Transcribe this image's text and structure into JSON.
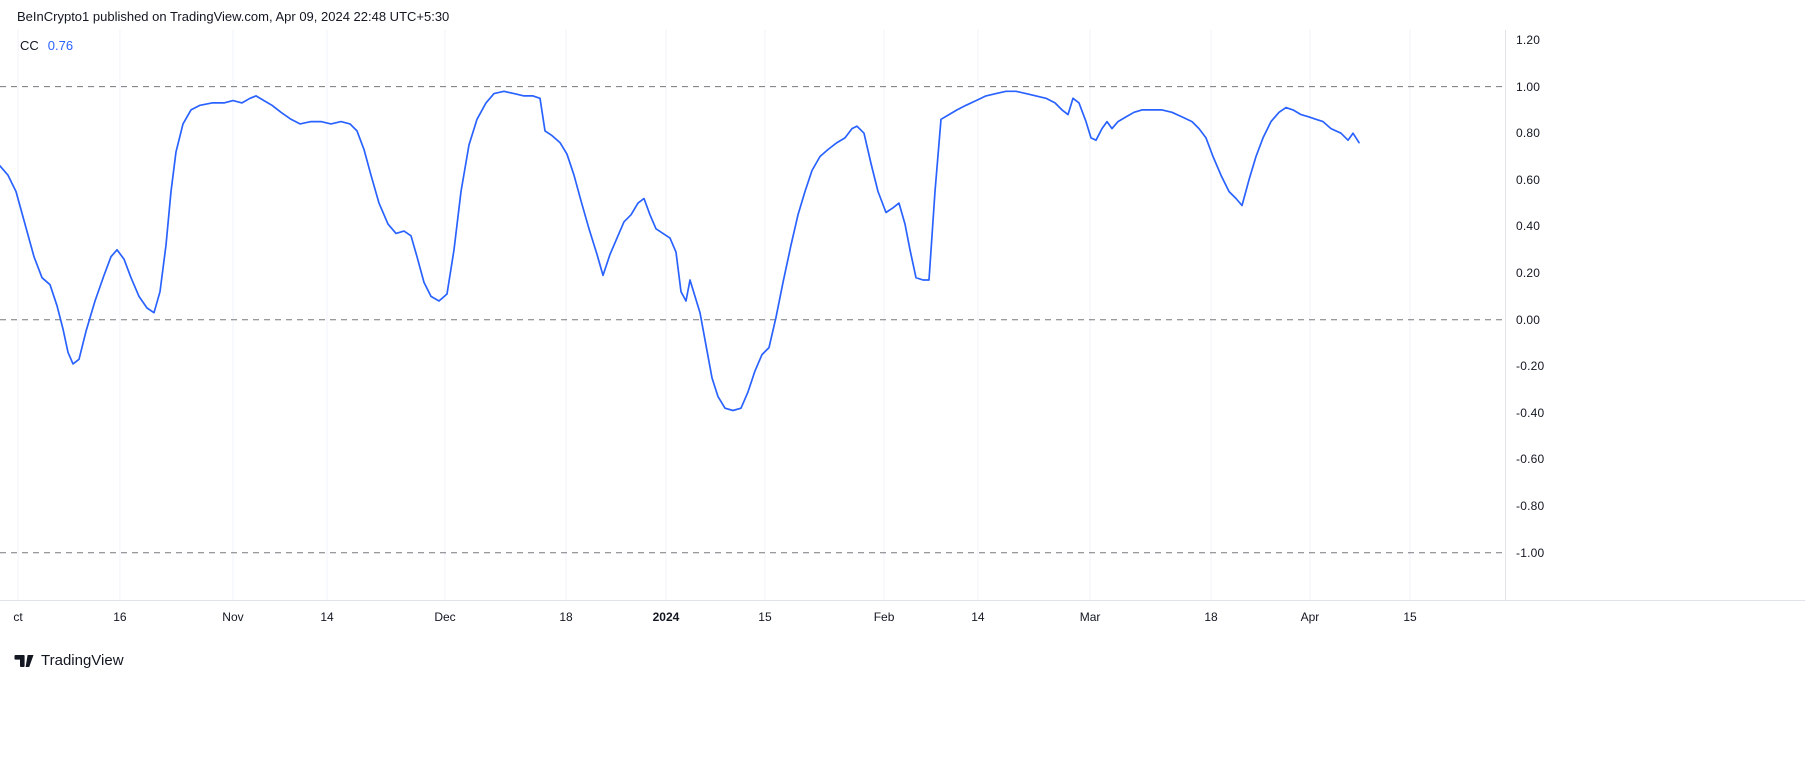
{
  "header": {
    "attribution": "BeInCrypto1 published on TradingView.com, Apr 09, 2024 22:48 UTC+5:30"
  },
  "legend": {
    "indicator": "CC",
    "value": "0.76"
  },
  "footer": {
    "logo_text": "TradingView"
  },
  "colors": {
    "background": "#FFFFFF",
    "line": "#2962FF",
    "value_text": "#2962FF",
    "dashed_grid": "#76787F",
    "vertical_grid": "#F0F3FA",
    "axis_text": "#131722",
    "pane_border": "#E0E3EB"
  },
  "chart_data": {
    "type": "line",
    "title": "CC (Correlation Coefficient)",
    "series_name": "CC",
    "current_value": 0.76,
    "x_range": [
      "Oct 2023",
      "Apr 2024"
    ],
    "y_domain": [
      1.243,
      -1.203
    ],
    "grid": "dashed horizontal at 1.00 / 0.00 / -1.00, faint vertical at time ticks",
    "legend_position": "top-left",
    "dashed_levels": [
      1.0,
      0.0,
      -1.0
    ],
    "y_ticks": [
      {
        "label": "1.20",
        "value": 1.2
      },
      {
        "label": "1.00",
        "value": 1.0
      },
      {
        "label": "0.80",
        "value": 0.8
      },
      {
        "label": "0.60",
        "value": 0.6
      },
      {
        "label": "0.40",
        "value": 0.4
      },
      {
        "label": "0.20",
        "value": 0.2
      },
      {
        "label": "0.00",
        "value": 0.0
      },
      {
        "label": "-0.20",
        "value": -0.2
      },
      {
        "label": "-0.40",
        "value": -0.4
      },
      {
        "label": "-0.60",
        "value": -0.6
      },
      {
        "label": "-0.80",
        "value": -0.8
      },
      {
        "label": "-1.00",
        "value": -1.0
      }
    ],
    "x_ticks": [
      {
        "label": "ct",
        "pos": 0.012
      },
      {
        "label": "16",
        "pos": 0.0797
      },
      {
        "label": "Nov",
        "pos": 0.1548
      },
      {
        "label": "14",
        "pos": 0.2173
      },
      {
        "label": "Dec",
        "pos": 0.2957
      },
      {
        "label": "18",
        "pos": 0.3761
      },
      {
        "label": "2024",
        "pos": 0.4425,
        "bold": true
      },
      {
        "label": "15",
        "pos": 0.5083
      },
      {
        "label": "Feb",
        "pos": 0.5874
      },
      {
        "label": "14",
        "pos": 0.6498
      },
      {
        "label": "Mar",
        "pos": 0.7243
      },
      {
        "label": "18",
        "pos": 0.8047
      },
      {
        "label": "Apr",
        "pos": 0.8704
      },
      {
        "label": "15",
        "pos": 0.9369
      }
    ],
    "x_unit": "plot pixels 0-1505 spanning Oct 2023 to mid Apr 2024",
    "points": [
      [
        0,
        0.66
      ],
      [
        8,
        0.62
      ],
      [
        16,
        0.55
      ],
      [
        25,
        0.41
      ],
      [
        34,
        0.27
      ],
      [
        42,
        0.18
      ],
      [
        50,
        0.15
      ],
      [
        57,
        0.06
      ],
      [
        63,
        -0.04
      ],
      [
        68,
        -0.14
      ],
      [
        73,
        -0.19
      ],
      [
        79,
        -0.17
      ],
      [
        86,
        -0.05
      ],
      [
        95,
        0.08
      ],
      [
        104,
        0.19
      ],
      [
        111,
        0.27
      ],
      [
        117,
        0.3
      ],
      [
        124,
        0.26
      ],
      [
        131,
        0.18
      ],
      [
        139,
        0.1
      ],
      [
        147,
        0.05
      ],
      [
        154,
        0.03
      ],
      [
        160,
        0.12
      ],
      [
        166,
        0.32
      ],
      [
        171,
        0.55
      ],
      [
        176,
        0.72
      ],
      [
        183,
        0.84
      ],
      [
        191,
        0.9
      ],
      [
        200,
        0.92
      ],
      [
        212,
        0.93
      ],
      [
        224,
        0.93
      ],
      [
        233,
        0.94
      ],
      [
        242,
        0.93
      ],
      [
        250,
        0.95
      ],
      [
        256,
        0.96
      ],
      [
        264,
        0.94
      ],
      [
        272,
        0.92
      ],
      [
        281,
        0.89
      ],
      [
        291,
        0.86
      ],
      [
        300,
        0.84
      ],
      [
        311,
        0.85
      ],
      [
        321,
        0.85
      ],
      [
        331,
        0.84
      ],
      [
        341,
        0.85
      ],
      [
        350,
        0.84
      ],
      [
        357,
        0.81
      ],
      [
        364,
        0.73
      ],
      [
        371,
        0.62
      ],
      [
        379,
        0.5
      ],
      [
        388,
        0.41
      ],
      [
        396,
        0.37
      ],
      [
        404,
        0.38
      ],
      [
        411,
        0.36
      ],
      [
        417,
        0.27
      ],
      [
        424,
        0.16
      ],
      [
        431,
        0.1
      ],
      [
        439,
        0.08
      ],
      [
        447,
        0.11
      ],
      [
        454,
        0.3
      ],
      [
        461,
        0.55
      ],
      [
        469,
        0.75
      ],
      [
        477,
        0.86
      ],
      [
        486,
        0.93
      ],
      [
        494,
        0.97
      ],
      [
        504,
        0.98
      ],
      [
        514,
        0.97
      ],
      [
        524,
        0.96
      ],
      [
        533,
        0.96
      ],
      [
        540,
        0.95
      ],
      [
        545,
        0.81
      ],
      [
        552,
        0.79
      ],
      [
        560,
        0.76
      ],
      [
        567,
        0.71
      ],
      [
        574,
        0.62
      ],
      [
        581,
        0.51
      ],
      [
        589,
        0.39
      ],
      [
        597,
        0.28
      ],
      [
        603,
        0.19
      ],
      [
        610,
        0.28
      ],
      [
        617,
        0.35
      ],
      [
        624,
        0.42
      ],
      [
        631,
        0.45
      ],
      [
        638,
        0.5
      ],
      [
        644,
        0.52
      ],
      [
        650,
        0.45
      ],
      [
        656,
        0.39
      ],
      [
        663,
        0.37
      ],
      [
        670,
        0.35
      ],
      [
        676,
        0.29
      ],
      [
        681,
        0.12
      ],
      [
        686,
        0.08
      ],
      [
        690,
        0.17
      ],
      [
        695,
        0.1
      ],
      [
        700,
        0.03
      ],
      [
        706,
        -0.11
      ],
      [
        712,
        -0.25
      ],
      [
        718,
        -0.33
      ],
      [
        725,
        -0.38
      ],
      [
        733,
        -0.39
      ],
      [
        741,
        -0.38
      ],
      [
        748,
        -0.31
      ],
      [
        755,
        -0.22
      ],
      [
        762,
        -0.15
      ],
      [
        769,
        -0.12
      ],
      [
        776,
        0.01
      ],
      [
        783,
        0.16
      ],
      [
        791,
        0.32
      ],
      [
        798,
        0.45
      ],
      [
        805,
        0.55
      ],
      [
        812,
        0.64
      ],
      [
        820,
        0.7
      ],
      [
        828,
        0.73
      ],
      [
        837,
        0.76
      ],
      [
        845,
        0.78
      ],
      [
        852,
        0.82
      ],
      [
        857,
        0.83
      ],
      [
        864,
        0.8
      ],
      [
        871,
        0.67
      ],
      [
        878,
        0.55
      ],
      [
        886,
        0.46
      ],
      [
        893,
        0.48
      ],
      [
        899,
        0.5
      ],
      [
        905,
        0.41
      ],
      [
        910,
        0.3
      ],
      [
        916,
        0.18
      ],
      [
        923,
        0.17
      ],
      [
        929,
        0.17
      ],
      [
        935,
        0.55
      ],
      [
        941,
        0.86
      ],
      [
        949,
        0.88
      ],
      [
        957,
        0.9
      ],
      [
        966,
        0.92
      ],
      [
        976,
        0.94
      ],
      [
        986,
        0.96
      ],
      [
        996,
        0.97
      ],
      [
        1006,
        0.98
      ],
      [
        1016,
        0.98
      ],
      [
        1026,
        0.97
      ],
      [
        1036,
        0.96
      ],
      [
        1046,
        0.95
      ],
      [
        1055,
        0.93
      ],
      [
        1062,
        0.9
      ],
      [
        1068,
        0.88
      ],
      [
        1073,
        0.95
      ],
      [
        1079,
        0.93
      ],
      [
        1086,
        0.85
      ],
      [
        1091,
        0.78
      ],
      [
        1096,
        0.77
      ],
      [
        1102,
        0.82
      ],
      [
        1107,
        0.85
      ],
      [
        1112,
        0.82
      ],
      [
        1118,
        0.85
      ],
      [
        1126,
        0.87
      ],
      [
        1134,
        0.89
      ],
      [
        1142,
        0.9
      ],
      [
        1152,
        0.9
      ],
      [
        1162,
        0.9
      ],
      [
        1172,
        0.89
      ],
      [
        1182,
        0.87
      ],
      [
        1192,
        0.85
      ],
      [
        1199,
        0.82
      ],
      [
        1206,
        0.78
      ],
      [
        1213,
        0.7
      ],
      [
        1221,
        0.62
      ],
      [
        1229,
        0.55
      ],
      [
        1236,
        0.52
      ],
      [
        1242,
        0.49
      ],
      [
        1249,
        0.6
      ],
      [
        1256,
        0.7
      ],
      [
        1263,
        0.78
      ],
      [
        1271,
        0.85
      ],
      [
        1279,
        0.89
      ],
      [
        1286,
        0.91
      ],
      [
        1293,
        0.9
      ],
      [
        1301,
        0.88
      ],
      [
        1309,
        0.87
      ],
      [
        1316,
        0.86
      ],
      [
        1323,
        0.85
      ],
      [
        1331,
        0.82
      ],
      [
        1341,
        0.8
      ],
      [
        1348,
        0.77
      ],
      [
        1353,
        0.8
      ],
      [
        1359,
        0.76
      ]
    ]
  }
}
